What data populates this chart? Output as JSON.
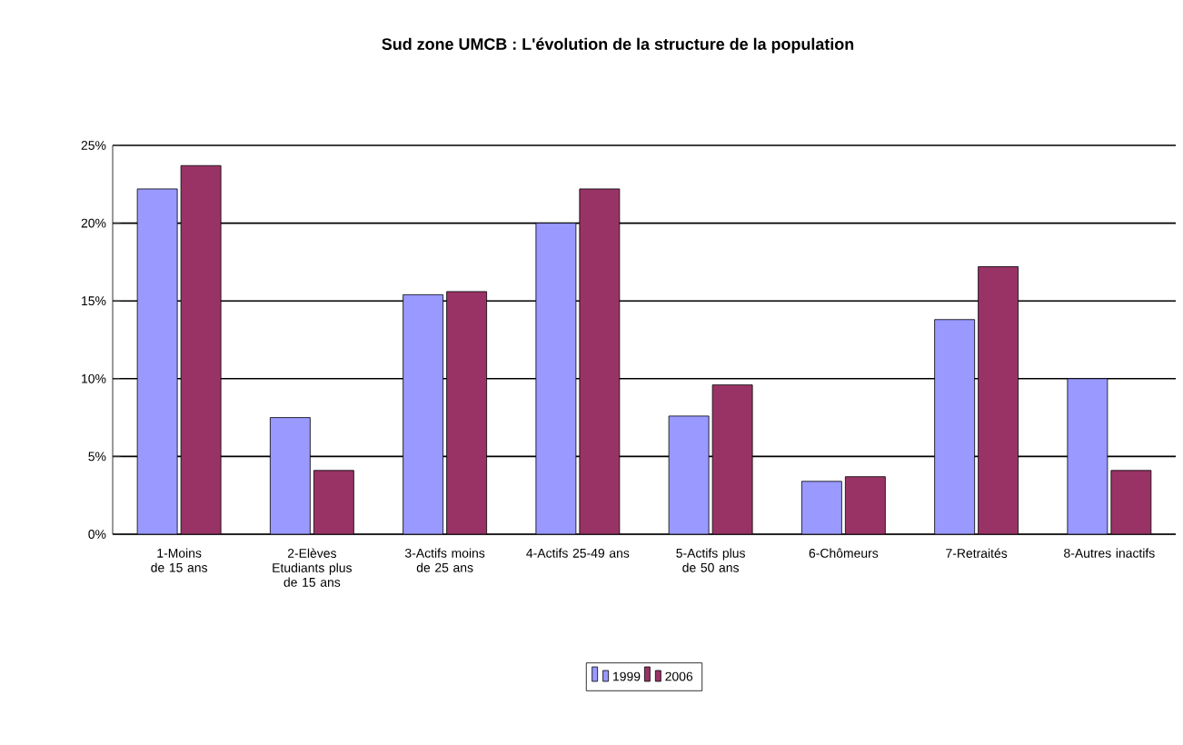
{
  "chart_data": {
    "type": "bar",
    "title": "Sud zone UMCB : L'évolution de la structure de la population",
    "categories": [
      "1-Moins de 15 ans",
      "2-Elèves Etudiants plus de 15 ans",
      "3-Actifs moins de 25 ans",
      "4-Actifs 25-49 ans",
      "5-Actifs plus de 50 ans",
      "6-Chômeurs",
      "7-Retraités",
      "8-Autres inactifs"
    ],
    "series": [
      {
        "name": "1999",
        "color": "#9999ff",
        "values": [
          22.2,
          7.5,
          15.4,
          20.0,
          7.6,
          3.4,
          13.8,
          10.0
        ]
      },
      {
        "name": "2006",
        "color": "#993366",
        "values": [
          23.7,
          4.1,
          15.6,
          22.2,
          9.6,
          3.7,
          17.2,
          4.1
        ]
      }
    ],
    "ylim": [
      0,
      25
    ],
    "yticks": [
      {
        "value": 0,
        "label": "0%"
      },
      {
        "value": 5,
        "label": "5%"
      },
      {
        "value": 10,
        "label": "10%"
      },
      {
        "value": 15,
        "label": "15%"
      },
      {
        "value": 20,
        "label": "20%"
      },
      {
        "value": 25,
        "label": "25%"
      }
    ],
    "grid": "y",
    "legend": "bottom"
  }
}
